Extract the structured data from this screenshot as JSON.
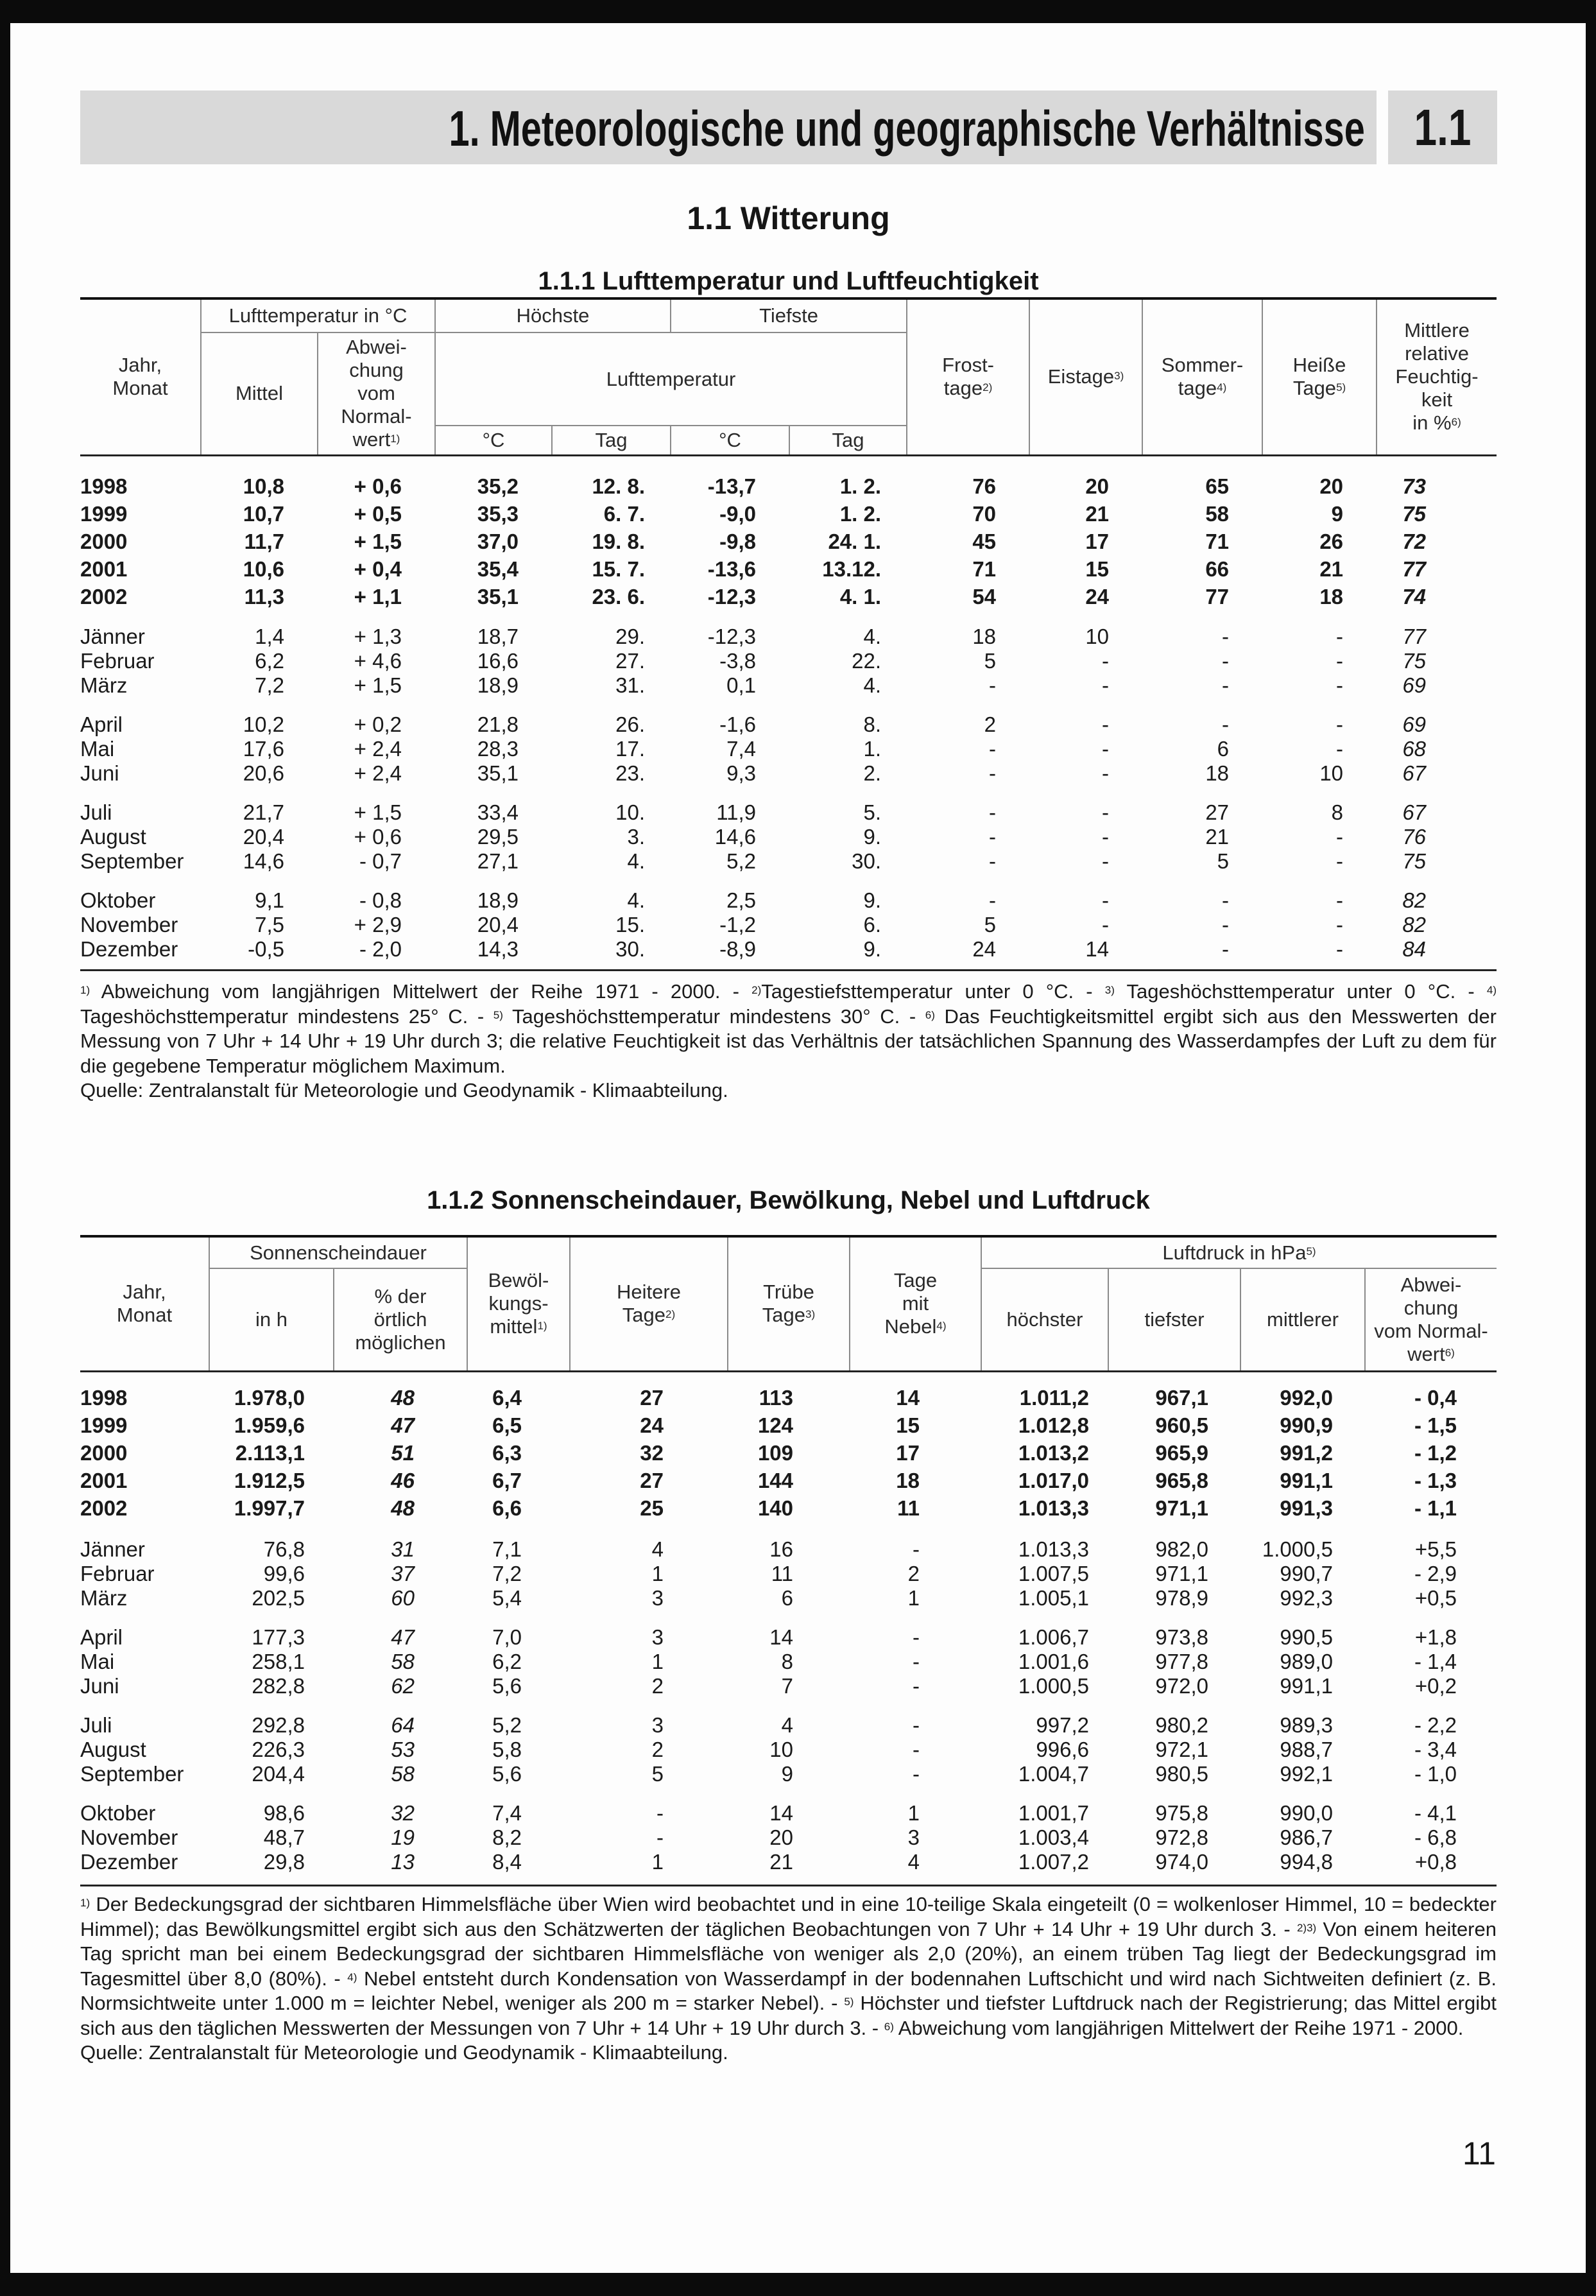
{
  "chapter": {
    "title": "1. Meteorologische und geographische Verhältnisse",
    "number": "1.1"
  },
  "section_title": "1.1 Witterung",
  "table1": {
    "title": "1.1.1 Lufttemperatur und Luftfeuchtigkeit",
    "header": {
      "jahr": [
        "Jahr,",
        "Monat"
      ],
      "lufttemp_group": "Lufttemperatur in  °C",
      "hoechste": "Höchste",
      "tiefste": "Tiefste",
      "mittel": "Mittel",
      "abweichung": [
        "Abwei-",
        "chung",
        "vom",
        "Normal-",
        "wert"
      ],
      "abweichung_sup": "1)",
      "lufttemperatur": "Lufttemperatur",
      "c1": "°C",
      "tag1": "Tag",
      "c2": "°C",
      "tag2": "Tag",
      "frost": [
        "Frost-",
        "tage"
      ],
      "frost_sup": "2)",
      "eis": [
        "Eistage"
      ],
      "eis_sup": "3)",
      "sommer": [
        "Sommer-",
        "tage"
      ],
      "sommer_sup": "4)",
      "heisse": [
        "Heiße",
        "Tage"
      ],
      "heisse_sup": "5)",
      "feuchte": [
        "Mittlere",
        "relative",
        "Feuchtig-",
        "keit",
        "in %"
      ],
      "feuchte_sup": "6)"
    },
    "years": [
      [
        "1998",
        "10,8",
        "+ 0,6",
        "35,2",
        "12. 8.",
        "-13,7",
        "1. 2.",
        "76",
        "20",
        "65",
        "20",
        "73"
      ],
      [
        "1999",
        "10,7",
        "+ 0,5",
        "35,3",
        "6. 7.",
        "-9,0",
        "1. 2.",
        "70",
        "21",
        "58",
        "9",
        "75"
      ],
      [
        "2000",
        "11,7",
        "+ 1,5",
        "37,0",
        "19. 8.",
        "-9,8",
        "24. 1.",
        "45",
        "17",
        "71",
        "26",
        "72"
      ],
      [
        "2001",
        "10,6",
        "+ 0,4",
        "35,4",
        "15. 7.",
        "-13,6",
        "13.12.",
        "71",
        "15",
        "66",
        "21",
        "77"
      ],
      [
        "2002",
        "11,3",
        "+ 1,1",
        "35,1",
        "23. 6.",
        "-12,3",
        "4. 1.",
        "54",
        "24",
        "77",
        "18",
        "74"
      ]
    ],
    "months": [
      [
        [
          "Jänner",
          "1,4",
          "+ 1,3",
          "18,7",
          "29.",
          "-12,3",
          "4.",
          "18",
          "10",
          "-",
          "-",
          "77"
        ],
        [
          "Februar",
          "6,2",
          "+ 4,6",
          "16,6",
          "27.",
          "-3,8",
          "22.",
          "5",
          "-",
          "-",
          "-",
          "75"
        ],
        [
          "März",
          "7,2",
          "+ 1,5",
          "18,9",
          "31.",
          "0,1",
          "4.",
          "-",
          "-",
          "-",
          "-",
          "69"
        ]
      ],
      [
        [
          "April",
          "10,2",
          "+ 0,2",
          "21,8",
          "26.",
          "-1,6",
          "8.",
          "2",
          "-",
          "-",
          "-",
          "69"
        ],
        [
          "Mai",
          "17,6",
          "+ 2,4",
          "28,3",
          "17.",
          "7,4",
          "1.",
          "-",
          "-",
          "6",
          "-",
          "68"
        ],
        [
          "Juni",
          "20,6",
          "+ 2,4",
          "35,1",
          "23.",
          "9,3",
          "2.",
          "-",
          "-",
          "18",
          "10",
          "67"
        ]
      ],
      [
        [
          "Juli",
          "21,7",
          "+ 1,5",
          "33,4",
          "10.",
          "11,9",
          "5.",
          "-",
          "-",
          "27",
          "8",
          "67"
        ],
        [
          "August",
          "20,4",
          "+ 0,6",
          "29,5",
          "3.",
          "14,6",
          "9.",
          "-",
          "-",
          "21",
          "-",
          "76"
        ],
        [
          "September",
          "14,6",
          "- 0,7",
          "27,1",
          "4.",
          "5,2",
          "30.",
          "-",
          "-",
          "5",
          "-",
          "75"
        ]
      ],
      [
        [
          "Oktober",
          "9,1",
          "- 0,8",
          "18,9",
          "4.",
          "2,5",
          "9.",
          "-",
          "-",
          "-",
          "-",
          "82"
        ],
        [
          "November",
          "7,5",
          "+ 2,9",
          "20,4",
          "15.",
          "-1,2",
          "6.",
          "5",
          "-",
          "-",
          "-",
          "82"
        ],
        [
          "Dezember",
          "-0,5",
          "- 2,0",
          "14,3",
          "30.",
          "-8,9",
          "9.",
          "24",
          "14",
          "-",
          "-",
          "84"
        ]
      ]
    ],
    "footnotes": [
      {
        "sup": "1)",
        "t": " Abweichung vom langjährigen Mittelwert der Reihe 1971 - 2000. - "
      },
      {
        "sup": "2)",
        "t": "Tagestiefsttemperatur unter 0 °C. - "
      },
      {
        "sup": "3)",
        "t": " Tageshöchsttemperatur unter 0 °C. - "
      },
      {
        "sup": "4)",
        "t": " Tageshöchsttemperatur mindestens 25° C. - "
      },
      {
        "sup": "5)",
        "t": " Tageshöchsttemperatur mindestens 30° C. - "
      },
      {
        "sup": "6)",
        "t": " Das Feuchtigkeitsmittel ergibt sich aus den Messwerten der Messung von 7 Uhr + 14 Uhr + 19 Uhr durch 3; die relative Feuchtigkeit ist das Verhältnis der tatsächlichen Spannung des Wasserdampfes der Luft zu dem für die gegebene Temperatur möglichem Maximum."
      }
    ],
    "source": "Quelle: Zentralanstalt für Meteorologie und Geodynamik - Klimaabteilung."
  },
  "table2": {
    "title": "1.1.2 Sonnenscheindauer, Bewölkung, Nebel und Luftdruck",
    "header": {
      "jahr": [
        "Jahr,",
        "Monat"
      ],
      "sonne": "Sonnenscheindauer",
      "in_h": "in h",
      "prozent": [
        "% der",
        "örtlich",
        "möglichen"
      ],
      "bewoelkung": [
        "Bewöl-",
        "kungs-",
        "mittel"
      ],
      "bewoelkung_sup": "1)",
      "heiter": [
        "Heitere",
        "Tage"
      ],
      "heiter_sup": "2)",
      "truebe": [
        "Trübe",
        "Tage"
      ],
      "truebe_sup": "3)",
      "nebel": [
        "Tage",
        "mit",
        "Nebel"
      ],
      "nebel_sup": "4)",
      "luftdruck": "Luftdruck in hPa",
      "luftdruck_sup": "5)",
      "hoechster": "höchster",
      "tiefster": "tiefster",
      "mittlerer": "mittlerer",
      "abweichung": [
        "Abwei-",
        "chung",
        "vom Normal-",
        "wert"
      ],
      "abweichung_sup": "6)"
    },
    "years": [
      [
        "1998",
        "1.978,0",
        "48",
        "6,4",
        "27",
        "113",
        "14",
        "1.011,2",
        "967,1",
        "992,0",
        "- 0,4"
      ],
      [
        "1999",
        "1.959,6",
        "47",
        "6,5",
        "24",
        "124",
        "15",
        "1.012,8",
        "960,5",
        "990,9",
        "- 1,5"
      ],
      [
        "2000",
        "2.113,1",
        "51",
        "6,3",
        "32",
        "109",
        "17",
        "1.013,2",
        "965,9",
        "991,2",
        "- 1,2"
      ],
      [
        "2001",
        "1.912,5",
        "46",
        "6,7",
        "27",
        "144",
        "18",
        "1.017,0",
        "965,8",
        "991,1",
        "- 1,3"
      ],
      [
        "2002",
        "1.997,7",
        "48",
        "6,6",
        "25",
        "140",
        "11",
        "1.013,3",
        "971,1",
        "991,3",
        "- 1,1"
      ]
    ],
    "months": [
      [
        [
          "Jänner",
          "76,8",
          "31",
          "7,1",
          "4",
          "16",
          "-",
          "1.013,3",
          "982,0",
          "1.000,5",
          "+5,5"
        ],
        [
          "Februar",
          "99,6",
          "37",
          "7,2",
          "1",
          "11",
          "2",
          "1.007,5",
          "971,1",
          "990,7",
          "- 2,9"
        ],
        [
          "März",
          "202,5",
          "60",
          "5,4",
          "3",
          "6",
          "1",
          "1.005,1",
          "978,9",
          "992,3",
          "+0,5"
        ]
      ],
      [
        [
          "April",
          "177,3",
          "47",
          "7,0",
          "3",
          "14",
          "-",
          "1.006,7",
          "973,8",
          "990,5",
          "+1,8"
        ],
        [
          "Mai",
          "258,1",
          "58",
          "6,2",
          "1",
          "8",
          "-",
          "1.001,6",
          "977,8",
          "989,0",
          "- 1,4"
        ],
        [
          "Juni",
          "282,8",
          "62",
          "5,6",
          "2",
          "7",
          "-",
          "1.000,5",
          "972,0",
          "991,1",
          "+0,2"
        ]
      ],
      [
        [
          "Juli",
          "292,8",
          "64",
          "5,2",
          "3",
          "4",
          "-",
          "997,2",
          "980,2",
          "989,3",
          "- 2,2"
        ],
        [
          "August",
          "226,3",
          "53",
          "5,8",
          "2",
          "10",
          "-",
          "996,6",
          "972,1",
          "988,7",
          "- 3,4"
        ],
        [
          "September",
          "204,4",
          "58",
          "5,6",
          "5",
          "9",
          "-",
          "1.004,7",
          "980,5",
          "992,1",
          "- 1,0"
        ]
      ],
      [
        [
          "Oktober",
          "98,6",
          "32",
          "7,4",
          "-",
          "14",
          "1",
          "1.001,7",
          "975,8",
          "990,0",
          "- 4,1"
        ],
        [
          "November",
          "48,7",
          "19",
          "8,2",
          "-",
          "20",
          "3",
          "1.003,4",
          "972,8",
          "986,7",
          "- 6,8"
        ],
        [
          "Dezember",
          "29,8",
          "13",
          "8,4",
          "1",
          "21",
          "4",
          "1.007,2",
          "974,0",
          "994,8",
          "+0,8"
        ]
      ]
    ],
    "footnotes": [
      {
        "sup": "1)",
        "t": " Der Bedeckungsgrad der sichtbaren Himmelsfläche über Wien wird beobachtet und in eine 10-teilige Skala eingeteilt (0 = wolkenloser Himmel, 10 = bedeckter Himmel); das Bewölkungsmittel ergibt sich aus den Schätzwerten der täglichen Beobachtungen von 7 Uhr + 14 Uhr + 19 Uhr durch 3. - "
      },
      {
        "sup": "2)3)",
        "t": " Von einem heiteren Tag spricht man bei einem Bedeckungsgrad der sichtbaren Himmelsfläche von weniger als 2,0 (20%), an einem trüben Tag liegt der Bedeckungsgrad im Tagesmittel über 8,0 (80%). - "
      },
      {
        "sup": "4)",
        "t": " Nebel entsteht durch Kondensation von Wasserdampf in der bodennahen Luftschicht und wird nach Sichtweiten definiert (z. B. Normsichtweite unter 1.000 m = leichter Nebel, weniger als 200 m = starker Nebel). - "
      },
      {
        "sup": "5)",
        "t": " Höchster und tiefster Luftdruck nach der Registrierung; das Mittel ergibt sich aus den täglichen Messwerten der Messungen von 7 Uhr + 14 Uhr  + 19 Uhr durch  3. - "
      },
      {
        "sup": "6)",
        "t": " Abweichung vom langjährigen Mittelwert der Reihe 1971 - 2000."
      }
    ],
    "source": "Quelle: Zentralanstalt für Meteorologie und Geodynamik - Klimaabteilung."
  },
  "page_number": "11"
}
